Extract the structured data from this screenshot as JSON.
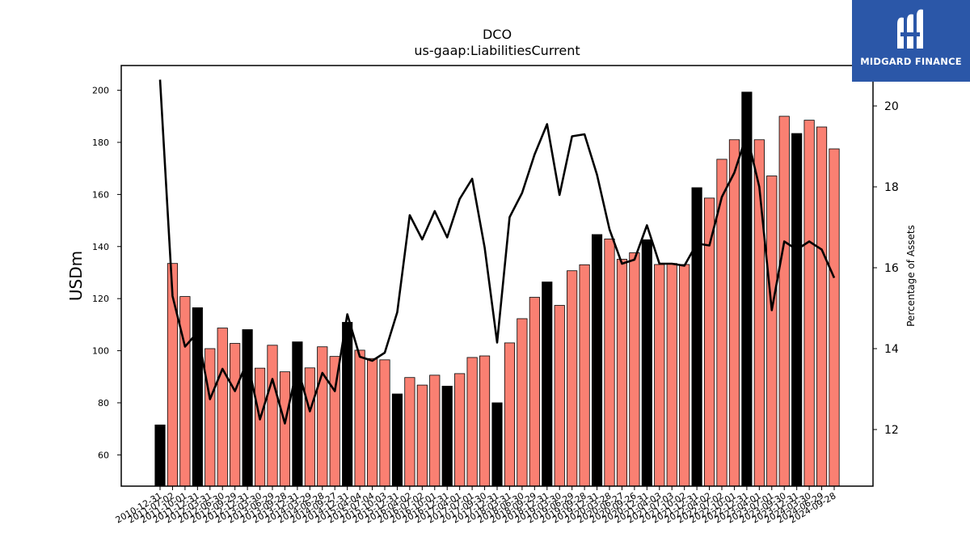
{
  "brand": {
    "name": "MIDGARD FINANCE",
    "icon": "midgard-logo-icon",
    "color": "#2b57a8"
  },
  "chart_data": {
    "type": "bar",
    "title": "DCO",
    "subtitle": "us-gaap:LiabilitiesCurrent",
    "ylabel": "USDm",
    "y2label": "Percentage of Assets",
    "ylim": [
      48,
      209.5
    ],
    "y2lim": [
      10.6,
      21.0
    ],
    "yticks": [
      60,
      80,
      100,
      120,
      140,
      160,
      180,
      200
    ],
    "y2ticks": [
      12,
      14,
      16,
      18,
      20
    ],
    "grid": false,
    "colors": {
      "annual": "#000000",
      "quarter": "#fa8072",
      "line": "#000000"
    },
    "categories": [
      "2010-12-31",
      "2011-07-02",
      "2011-10-01",
      "2011-12-31",
      "2012-03-31",
      "2012-06-30",
      "2012-09-29",
      "2012-12-31",
      "2013-03-30",
      "2013-06-29",
      "2013-09-28",
      "2013-12-31",
      "2014-03-29",
      "2014-06-28",
      "2014-09-27",
      "2014-12-31",
      "2015-04-04",
      "2015-07-04",
      "2015-10-03",
      "2015-12-31",
      "2016-04-02",
      "2016-07-02",
      "2016-10-01",
      "2016-12-31",
      "2017-04-01",
      "2017-07-01",
      "2017-09-30",
      "2017-12-31",
      "2018-03-31",
      "2018-06-30",
      "2018-09-29",
      "2018-12-31",
      "2019-03-30",
      "2019-06-29",
      "2019-09-28",
      "2019-12-31",
      "2020-03-28",
      "2020-06-27",
      "2020-09-26",
      "2020-12-31",
      "2021-04-03",
      "2021-07-03",
      "2021-10-02",
      "2021-12-31",
      "2022-04-02",
      "2022-07-02",
      "2022-10-01",
      "2022-12-31",
      "2023-04-01",
      "2023-07-01",
      "2023-09-30",
      "2023-12-31",
      "2024-03-30",
      "2024-06-29",
      "2024-09-28"
    ],
    "values": [
      71.5,
      133.5,
      120.8,
      116.5,
      100.8,
      108.7,
      102.8,
      108.1,
      93.3,
      102.1,
      91.9,
      103.4,
      93.4,
      101.5,
      97.8,
      110.9,
      100.2,
      97.0,
      96.5,
      83.4,
      89.7,
      86.8,
      90.6,
      86.4,
      91.2,
      97.4,
      98.0,
      80.0,
      103.0,
      112.3,
      120.5,
      126.4,
      117.4,
      130.7,
      133.0,
      144.6,
      142.9,
      135.1,
      137.6,
      142.6,
      133.1,
      133.5,
      133.1,
      162.6,
      158.6,
      173.5,
      181.0,
      199.3,
      181.0,
      167.1,
      190.0,
      183.4,
      188.5,
      185.9,
      177.5
    ],
    "annual": [
      true,
      false,
      false,
      true,
      false,
      false,
      false,
      true,
      false,
      false,
      false,
      true,
      false,
      false,
      false,
      true,
      false,
      false,
      false,
      true,
      false,
      false,
      false,
      true,
      false,
      false,
      false,
      true,
      false,
      false,
      false,
      true,
      false,
      false,
      false,
      true,
      false,
      false,
      false,
      true,
      false,
      false,
      false,
      true,
      false,
      false,
      false,
      true,
      false,
      false,
      false,
      true,
      false,
      false,
      false
    ],
    "series": [
      {
        "values": [
          20.65,
          15.3,
          14.05,
          14.4,
          12.75,
          13.5,
          12.95,
          13.7,
          12.25,
          13.25,
          12.15,
          13.55,
          12.45,
          13.4,
          12.95,
          14.85,
          13.8,
          13.7,
          13.9,
          14.9,
          17.3,
          16.7,
          17.4,
          16.75,
          17.7,
          18.2,
          16.5,
          14.15,
          17.25,
          17.85,
          18.8,
          19.55,
          17.8,
          19.25,
          19.3,
          18.3,
          16.95,
          16.1,
          16.2,
          17.05,
          16.1,
          16.1,
          16.05,
          16.6,
          16.55,
          17.75,
          18.35,
          19.3,
          18.0,
          14.95,
          16.65,
          16.45,
          16.65,
          16.45,
          15.75
        ]
      }
    ]
  }
}
